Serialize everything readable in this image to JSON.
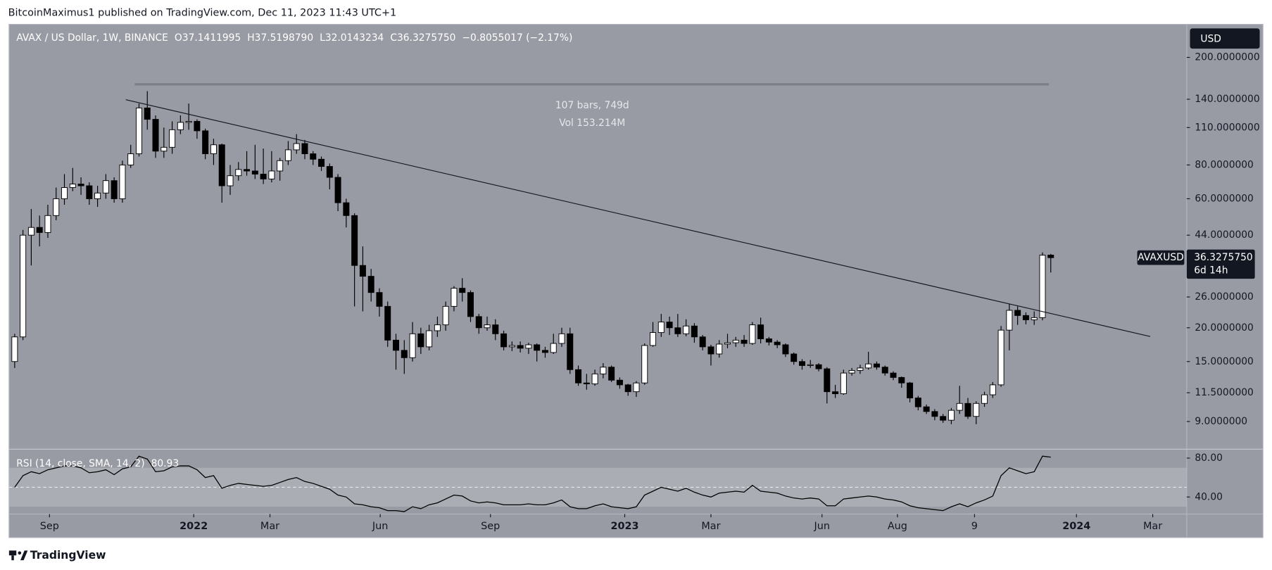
{
  "header": {
    "publisher": "BitcoinMaximus1 published on TradingView.com, Dec 11, 2023 11:43 UTC+1",
    "footer": "TradingView"
  },
  "chart_data": {
    "type": "candlestick",
    "symbol": "AVAX / US Dollar, 1W, BINANCE",
    "ohlc_legend": [
      {
        "key": "O",
        "value": "37.1411995"
      },
      {
        "key": "H",
        "value": "37.5198790"
      },
      {
        "key": "L",
        "value": "32.0143234"
      },
      {
        "key": "C",
        "value": "36.3275750"
      }
    ],
    "change": "−0.8055017 (−2.17%)",
    "currency": "USD",
    "ticker": "AVAXUSD",
    "last_price": {
      "value": 36.327575,
      "label": "36.3275750"
    },
    "countdown": "6d 14h",
    "measure": [
      "107 bars, 749d",
      "Vol 153.214M"
    ],
    "log_scale": true,
    "grid": false,
    "up_color": "#ffffff",
    "down_color": "#000000",
    "ylim": [
      7.16,
      265
    ],
    "yticks": [
      {
        "value": 9,
        "label": "9.0000000"
      },
      {
        "value": 11.5,
        "label": "11.5000000"
      },
      {
        "value": 15,
        "label": "15.0000000"
      },
      {
        "value": 20,
        "label": "20.0000000"
      },
      {
        "value": 26,
        "label": "26.0000000"
      },
      {
        "value": 44,
        "label": "44.0000000"
      },
      {
        "value": 60,
        "label": "60.0000000"
      },
      {
        "value": 80,
        "label": "80.0000000"
      },
      {
        "value": 110,
        "label": "110.0000000"
      },
      {
        "value": 140,
        "label": "140.0000000"
      },
      {
        "value": 200,
        "label": "200.0000000"
      }
    ],
    "xlim": [
      -0.68,
      141.4
    ],
    "xticks": [
      {
        "value": 4.2,
        "label": "Sep"
      },
      {
        "value": 21.6,
        "label": "2022"
      },
      {
        "value": 30.8,
        "label": "Mar"
      },
      {
        "value": 44.1,
        "label": "Jun"
      },
      {
        "value": 57.4,
        "label": "Sep"
      },
      {
        "value": 73.6,
        "label": "2023"
      },
      {
        "value": 84.0,
        "label": "Mar"
      },
      {
        "value": 97.4,
        "label": "Jun"
      },
      {
        "value": 106.5,
        "label": "Aug"
      },
      {
        "value": 115.8,
        "label": "9"
      },
      {
        "value": 128.1,
        "label": "2024"
      },
      {
        "value": 137.3,
        "label": "Mar"
      }
    ],
    "candles": {
      "open": [
        15,
        18.5,
        44,
        47,
        45,
        52,
        60,
        66,
        68,
        67,
        60,
        63,
        70,
        60,
        80,
        88,
        130,
        118,
        90,
        93,
        108,
        115,
        116,
        107,
        88,
        95,
        67,
        73,
        77,
        76,
        74,
        71,
        76,
        83,
        91,
        96,
        88,
        84,
        79,
        72,
        58,
        52,
        34,
        31,
        27,
        24,
        18,
        16.5,
        15.5,
        19,
        17,
        19.5,
        20.5,
        24,
        28,
        27,
        22,
        20,
        20.5,
        19,
        17,
        17.2,
        16.8,
        17.3,
        16.5,
        16.2,
        17.5,
        19,
        14,
        12.5,
        12.4,
        13.5,
        14.3,
        12.8,
        12.3,
        11.6,
        12.5,
        17.2,
        19.2,
        21,
        20,
        19,
        20.3,
        18.5,
        17,
        16,
        17.4,
        17.6,
        18,
        17.5,
        20.5,
        18.2,
        17.7,
        17.3,
        16,
        15,
        14.5,
        14.6,
        14.1,
        11.6,
        11.4,
        13.6,
        13.9,
        14.2,
        14.7,
        14.3,
        13.6,
        13.1,
        12.5,
        11,
        10.2,
        9.8,
        9.4,
        9.1,
        9.9,
        10.5,
        9.4,
        10.5,
        11.3,
        12.3,
        19.6,
        23.2,
        22.2,
        21.4,
        21.8,
        37.1411995
      ],
      "high": [
        19,
        46,
        55,
        52,
        57,
        66,
        74,
        78,
        72,
        69,
        67,
        74,
        72,
        83,
        95,
        135,
        150,
        122,
        110,
        116,
        122,
        135,
        118,
        109,
        100,
        96,
        80,
        82,
        90,
        95,
        92,
        90,
        85,
        98,
        104,
        99,
        90,
        86,
        81,
        74,
        60,
        53,
        40,
        33,
        28,
        25,
        19,
        18,
        21,
        20,
        20.5,
        22,
        25,
        28.5,
        30.5,
        27.5,
        22.5,
        22,
        21.5,
        19.5,
        17.8,
        17.8,
        17.6,
        17.5,
        17,
        19,
        20,
        20,
        14.5,
        13.5,
        14,
        14.8,
        14.5,
        13.1,
        12.4,
        12.7,
        17.5,
        21,
        22.5,
        22,
        22.5,
        21.5,
        20.8,
        18.8,
        17.3,
        18,
        19,
        18.5,
        18.8,
        21,
        21.8,
        18.5,
        18,
        17.5,
        16.2,
        15.3,
        15.2,
        14.8,
        14.3,
        12.3,
        14,
        14.2,
        14.6,
        16.3,
        15,
        14.5,
        13.8,
        13.2,
        12.6,
        11.2,
        10.4,
        10,
        9.6,
        10.1,
        12.2,
        11,
        10.7,
        11.6,
        12.6,
        20.3,
        24.5,
        24,
        22.8,
        23,
        38,
        37.519879
      ],
      "low": [
        14.2,
        18,
        34,
        40,
        43,
        50,
        57,
        64,
        62,
        57,
        56,
        60,
        58,
        58,
        78,
        86,
        108,
        85,
        85,
        88,
        104,
        108,
        100,
        84,
        80,
        58,
        62,
        70,
        73,
        71,
        68,
        69,
        70,
        80,
        88,
        84,
        80,
        76,
        65,
        54,
        47,
        24,
        23,
        25,
        22,
        17,
        14,
        13.5,
        15,
        16,
        16.5,
        18.5,
        19.5,
        23,
        25,
        21,
        19,
        19.5,
        18,
        16.5,
        16.4,
        16.2,
        16,
        15,
        15.5,
        16,
        17,
        13.5,
        12.2,
        11.8,
        12.2,
        13,
        12.6,
        11.9,
        11.2,
        11.1,
        12.3,
        17,
        18.5,
        18.8,
        18.5,
        18.6,
        17.6,
        16.5,
        14.5,
        15.5,
        16.8,
        17,
        17,
        17.3,
        17.5,
        17.2,
        16.8,
        15.6,
        14.6,
        14,
        14.2,
        13.8,
        10.5,
        11,
        11.3,
        13.3,
        13.5,
        14,
        14,
        13.3,
        12.8,
        12,
        10.6,
        9.9,
        9.6,
        9.1,
        8.9,
        8.8,
        9.6,
        9.2,
        8.8,
        10.2,
        11,
        12.1,
        16.5,
        20.5,
        20.6,
        20.5,
        21.3,
        32.0143234
      ],
      "close": [
        18.5,
        44,
        47,
        45,
        52,
        60,
        66,
        68,
        67,
        60,
        63,
        70,
        60,
        80,
        88,
        130,
        118,
        90,
        93,
        108,
        115,
        116,
        107,
        88,
        95,
        67,
        73,
        77,
        76,
        74,
        71,
        76,
        83,
        91,
        96,
        88,
        84,
        79,
        72,
        58,
        52,
        34,
        31,
        27,
        24,
        18,
        16.5,
        15.5,
        19,
        17,
        19.5,
        20.5,
        24,
        28,
        27,
        22,
        20,
        20.5,
        19,
        17,
        17.2,
        16.8,
        17.3,
        16.5,
        16.2,
        17.5,
        19,
        14,
        12.5,
        12.4,
        13.5,
        14.3,
        12.8,
        12.3,
        11.6,
        12.5,
        17.2,
        19.2,
        21,
        20,
        19,
        20.3,
        18.5,
        17,
        16,
        17.4,
        17.6,
        18,
        17.5,
        20.5,
        18.2,
        17.7,
        17.3,
        16,
        15,
        14.5,
        14.6,
        14.1,
        11.6,
        11.4,
        13.6,
        13.9,
        14.2,
        14.7,
        14.3,
        13.6,
        13.1,
        12.5,
        11,
        10.2,
        9.8,
        9.4,
        9.1,
        9.9,
        10.5,
        9.4,
        10.5,
        11.3,
        12.3,
        19.6,
        23.2,
        22.2,
        21.4,
        21.8,
        37.1,
        36.327575
      ]
    },
    "rsi": {
      "title": "RSI (14, close, SMA, 14, 2)",
      "color": "#000000",
      "ylim": [
        23.3,
        88.3
      ],
      "yticks": [
        {
          "value": 40,
          "label": "40.00"
        },
        {
          "value": 80,
          "label": "80.00"
        }
      ],
      "band": [
        30,
        70
      ],
      "midline": 50,
      "values": [
        50,
        62,
        66,
        64,
        68,
        70,
        72,
        72,
        70,
        65,
        66,
        68,
        63,
        69,
        71,
        82,
        79,
        66,
        67,
        71,
        72,
        72,
        68,
        60,
        62,
        49,
        52,
        54,
        53,
        52,
        51,
        52,
        55,
        58,
        60,
        56,
        54,
        51,
        48,
        42,
        40,
        33,
        32,
        30,
        29,
        26,
        26,
        25,
        30,
        28,
        32,
        34,
        38,
        42,
        41,
        36,
        34,
        35,
        34,
        32,
        32,
        32,
        33,
        32,
        32,
        34,
        37,
        30,
        28,
        28,
        31,
        33,
        30,
        29,
        28,
        30,
        42,
        46,
        50,
        48,
        46,
        49,
        45,
        42,
        40,
        44,
        45,
        46,
        45,
        52,
        46,
        45,
        44,
        41,
        39,
        38,
        39,
        38,
        31,
        31,
        38,
        39,
        40,
        41,
        40,
        38,
        37,
        35,
        31,
        29,
        28,
        27,
        26,
        30,
        33,
        30,
        34,
        37,
        41,
        62,
        70,
        67,
        64,
        66,
        82,
        80.93
      ]
    }
  }
}
